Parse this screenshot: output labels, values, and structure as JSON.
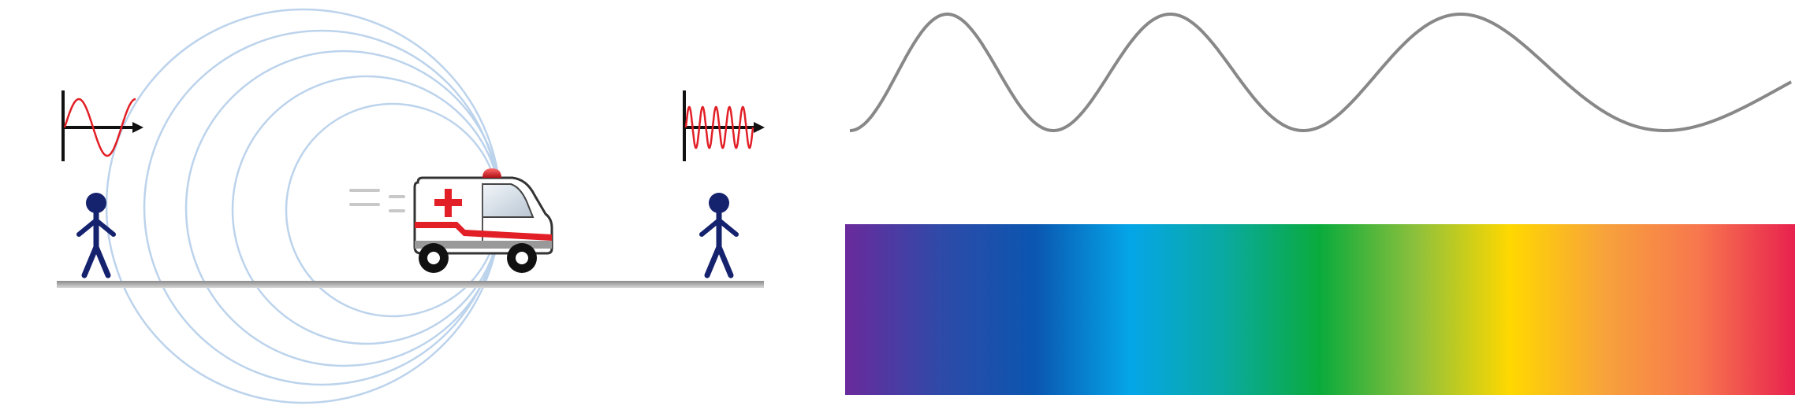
{
  "panels": {
    "doppler": {
      "source": "ambulance",
      "source_motion": "right",
      "observers": [
        {
          "side": "left",
          "heard_wave": "long-wavelength"
        },
        {
          "side": "right",
          "heard_wave": "short-wavelength"
        }
      ]
    },
    "chirp_wave": {
      "wavelength_trend": "short-to-long"
    },
    "spectrum": {
      "stops": [
        "#6a2a9c",
        "#2f4aa8",
        "#0a56b0",
        "#05a6e8",
        "#0aa9a0",
        "#0aab3c",
        "#8cc03c",
        "#ffd800",
        "#f7a23c",
        "#f7764e",
        "#e8214e"
      ]
    }
  },
  "colors": {
    "wave_red": "#e21f26",
    "wave_gray": "#888888",
    "ring_blue": "#bcd3ec",
    "figure_navy": "#15226e",
    "ground": "#b5b5b5"
  },
  "icons": [
    "ambulance-icon",
    "person-icon",
    "wave-graph-icon",
    "siren-icon",
    "red-cross-icon"
  ]
}
